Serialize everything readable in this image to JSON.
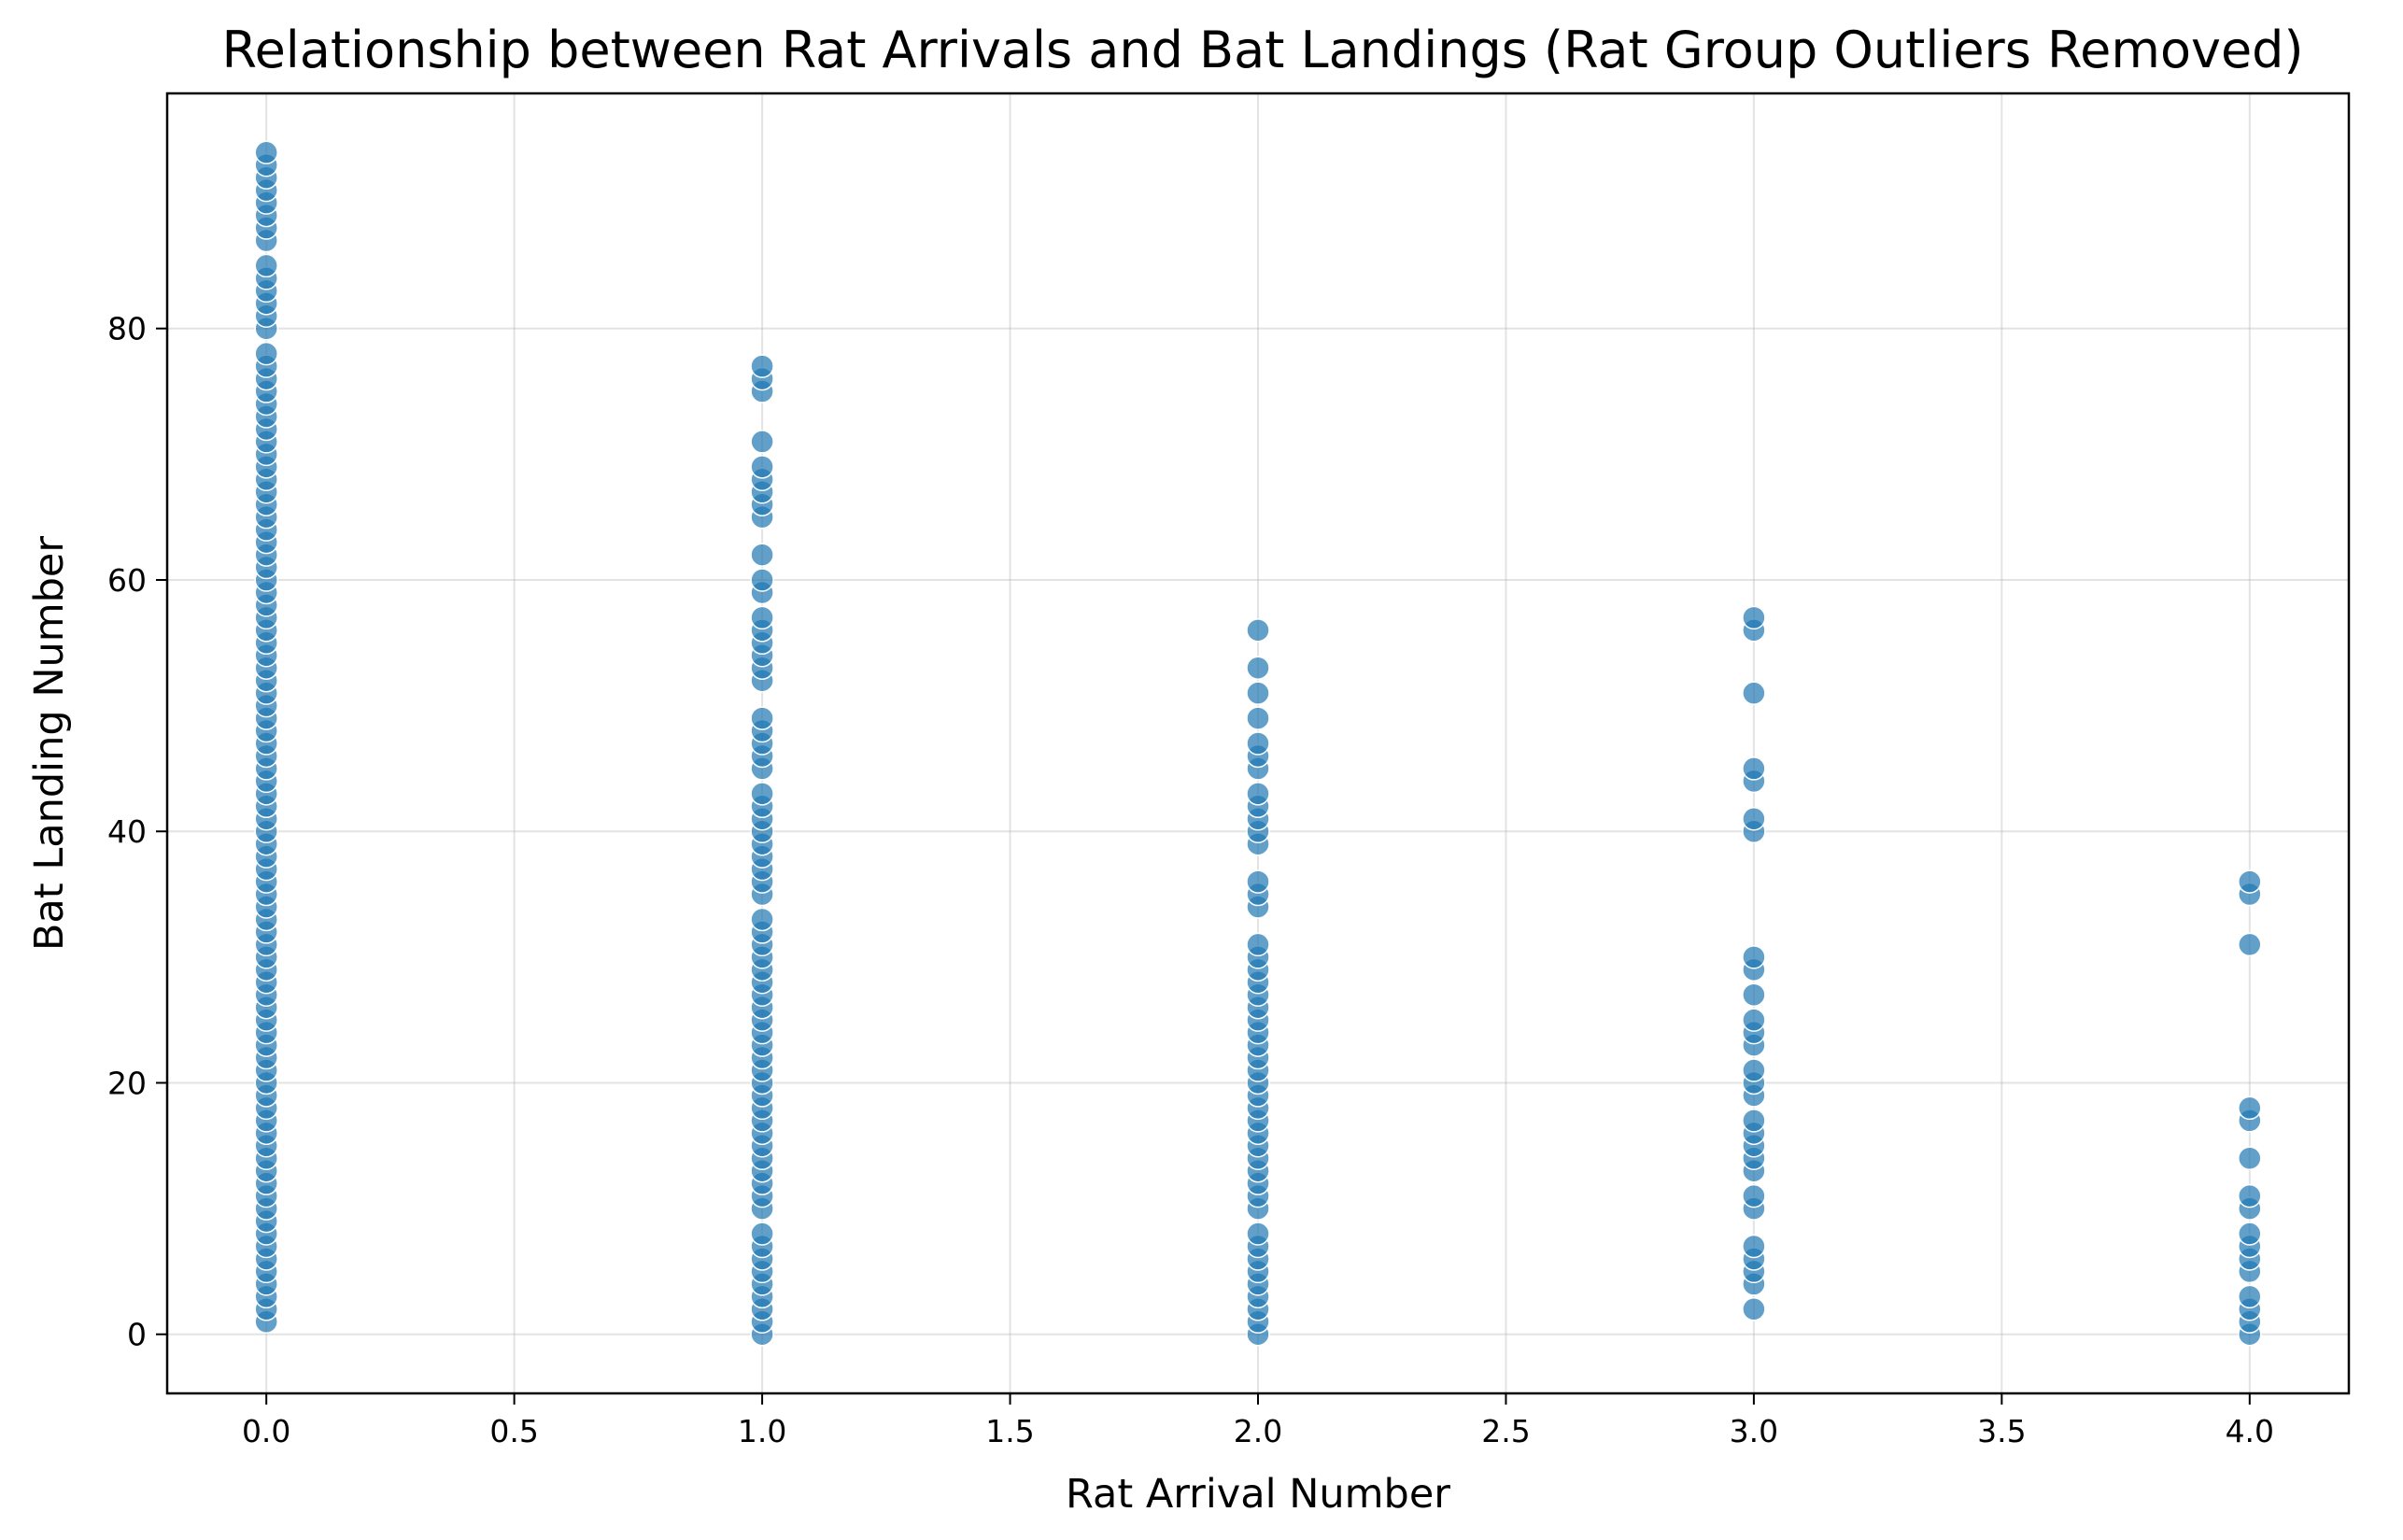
{
  "chart_data": {
    "type": "scatter",
    "title": "Relationship between Rat Arrivals and Bat Landings (Rat Group Outliers Removed)",
    "xlabel": "Rat Arrival Number",
    "ylabel": "Bat Landing Number",
    "xlim": [
      -0.2,
      4.2
    ],
    "ylim": [
      -4.7,
      98.7
    ],
    "xticks": [
      0.0,
      0.5,
      1.0,
      1.5,
      2.0,
      2.5,
      3.0,
      3.5,
      4.0
    ],
    "xtick_labels": [
      "0.0",
      "0.5",
      "1.0",
      "1.5",
      "2.0",
      "2.5",
      "3.0",
      "3.5",
      "4.0"
    ],
    "yticks": [
      0,
      20,
      40,
      60,
      80
    ],
    "ytick_labels": [
      "0",
      "20",
      "40",
      "60",
      "80"
    ],
    "grid": true,
    "marker_color": "#1f77b4",
    "groups": [
      {
        "x": 0,
        "y": [
          1,
          2,
          3,
          4,
          5,
          6,
          7,
          8,
          9,
          10,
          11,
          12,
          13,
          14,
          15,
          16,
          17,
          18,
          19,
          20,
          21,
          22,
          23,
          24,
          25,
          26,
          27,
          28,
          29,
          30,
          31,
          32,
          33,
          34,
          35,
          36,
          37,
          38,
          39,
          40,
          41,
          42,
          43,
          44,
          45,
          46,
          47,
          48,
          49,
          50,
          51,
          52,
          53,
          54,
          55,
          56,
          57,
          58,
          59,
          60,
          61,
          62,
          63,
          64,
          65,
          66,
          67,
          68,
          69,
          70,
          71,
          72,
          73,
          74,
          75,
          76,
          77,
          78,
          80,
          81,
          82,
          83,
          84,
          85,
          87,
          88,
          89,
          90,
          91,
          92,
          93,
          94
        ]
      },
      {
        "x": 1,
        "y": [
          0,
          1,
          2,
          3,
          4,
          5,
          6,
          7,
          8,
          10,
          11,
          12,
          13,
          14,
          15,
          16,
          17,
          18,
          19,
          20,
          21,
          22,
          23,
          24,
          25,
          26,
          27,
          28,
          29,
          30,
          31,
          32,
          33,
          35,
          36,
          37,
          38,
          39,
          40,
          41,
          42,
          43,
          45,
          46,
          47,
          48,
          49,
          52,
          53,
          54,
          55,
          56,
          57,
          59,
          60,
          62,
          65,
          66,
          67,
          68,
          69,
          71,
          75,
          76,
          77
        ]
      },
      {
        "x": 2,
        "y": [
          0,
          1,
          2,
          3,
          4,
          5,
          6,
          7,
          8,
          10,
          11,
          12,
          13,
          14,
          15,
          16,
          17,
          18,
          19,
          20,
          21,
          22,
          23,
          24,
          25,
          26,
          27,
          28,
          29,
          30,
          31,
          34,
          35,
          36,
          39,
          40,
          41,
          42,
          43,
          45,
          46,
          47,
          49,
          51,
          53,
          56
        ]
      },
      {
        "x": 3,
        "y": [
          2,
          4,
          5,
          6,
          7,
          10,
          11,
          13,
          14,
          15,
          16,
          17,
          19,
          20,
          21,
          23,
          24,
          25,
          27,
          29,
          30,
          40,
          41,
          44,
          45,
          51,
          56,
          57
        ]
      },
      {
        "x": 4,
        "y": [
          0,
          1,
          2,
          3,
          5,
          6,
          7,
          8,
          10,
          11,
          14,
          17,
          18,
          31,
          35,
          36
        ]
      }
    ]
  }
}
